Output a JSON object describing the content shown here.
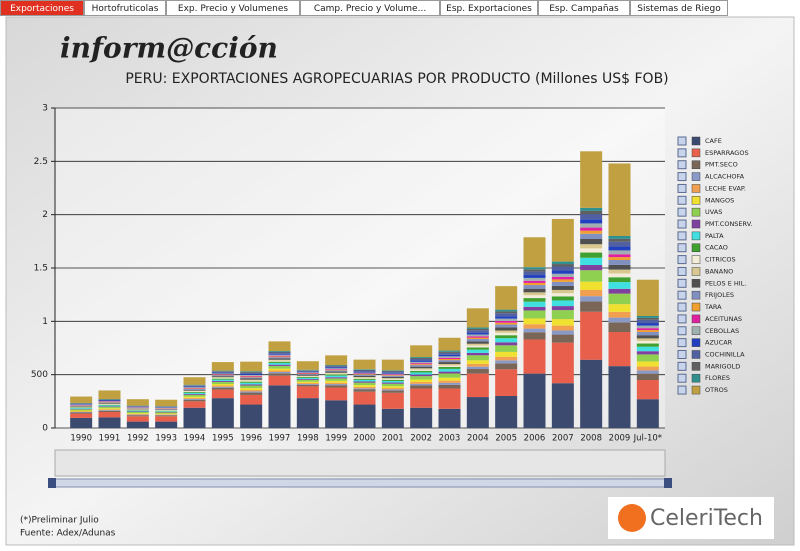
{
  "tabs": [
    "Exportaciones",
    "Hortofruticolas",
    "Exp. Precio y Volumenes",
    "Camp. Precio y Volume...",
    "Esp. Exportaciones",
    "Esp. Campañas",
    "Sistemas de Riego"
  ],
  "brand": "inform@cción",
  "chart_data": {
    "type": "bar",
    "stacked": true,
    "title": "PERU: EXPORTACIONES AGROPECUARIAS POR PRODUCTO (Millones US$ FOB)",
    "categories": [
      "1990",
      "1991",
      "1992",
      "1993",
      "1994",
      "1995",
      "1996",
      "1997",
      "1998",
      "1999",
      "2000",
      "2001",
      "2002",
      "2003",
      "2004",
      "2005",
      "2006",
      "2007",
      "2008",
      "2009",
      "Jul-10*"
    ],
    "ylim": [
      0,
      3000
    ],
    "yticks": [
      0,
      500,
      {
        "value": 1000,
        "label": "1"
      },
      {
        "value": 1500,
        "label": "1.5"
      },
      {
        "value": 2000,
        "label": "2"
      },
      {
        "value": 2500,
        "label": "2.5"
      },
      {
        "value": 3000,
        "label": "3"
      }
    ],
    "grid": true,
    "legend": "right",
    "series": [
      {
        "name": "CAFE",
        "color": "#3b4a6e",
        "values": [
          95,
          100,
          60,
          60,
          190,
          280,
          220,
          400,
          280,
          260,
          220,
          180,
          190,
          180,
          290,
          300,
          510,
          420,
          640,
          580,
          270
        ]
      },
      {
        "name": "ESPARRAGOS",
        "color": "#e8604c",
        "values": [
          40,
          50,
          50,
          50,
          60,
          80,
          90,
          90,
          110,
          120,
          120,
          150,
          180,
          190,
          220,
          250,
          320,
          380,
          450,
          320,
          180
        ]
      },
      {
        "name": "PMT.SECO",
        "color": "#7a6656",
        "values": [
          10,
          12,
          10,
          9,
          15,
          18,
          22,
          23,
          15,
          21,
          21,
          21,
          29,
          35,
          43,
          56,
          68,
          76,
          97,
          90,
          60
        ]
      },
      {
        "name": "ALCACHOFA",
        "color": "#8a9ac8",
        "values": [
          5,
          6,
          5,
          5,
          8,
          9,
          11,
          12,
          8,
          11,
          11,
          11,
          15,
          18,
          22,
          28,
          34,
          38,
          49,
          45,
          30
        ]
      },
      {
        "name": "LECHE EVAP.",
        "color": "#f0a050",
        "values": [
          6,
          7,
          6,
          5,
          9,
          11,
          13,
          14,
          9,
          13,
          13,
          13,
          17,
          21,
          26,
          34,
          41,
          46,
          58,
          54,
          36
        ]
      },
      {
        "name": "MANGOS",
        "color": "#f0e030",
        "values": [
          8,
          10,
          8,
          7,
          12,
          14,
          18,
          18,
          12,
          17,
          17,
          17,
          23,
          28,
          34,
          45,
          54,
          61,
          78,
          72,
          48
        ]
      },
      {
        "name": "UVAS",
        "color": "#90d050",
        "values": [
          11,
          13,
          11,
          10,
          17,
          20,
          24,
          25,
          17,
          23,
          23,
          23,
          32,
          39,
          47,
          62,
          75,
          84,
          107,
          99,
          66
        ]
      },
      {
        "name": "PMT.CONSERV.",
        "color": "#8040a0",
        "values": [
          5,
          6,
          5,
          5,
          8,
          9,
          11,
          12,
          8,
          11,
          11,
          11,
          15,
          18,
          22,
          28,
          34,
          38,
          49,
          45,
          30
        ]
      },
      {
        "name": "PALTA",
        "color": "#40e0e0",
        "values": [
          7,
          8,
          7,
          6,
          11,
          13,
          15,
          16,
          11,
          15,
          15,
          15,
          20,
          25,
          30,
          39,
          48,
          53,
          68,
          63,
          42
        ]
      },
      {
        "name": "CACAO",
        "color": "#40a030",
        "values": [
          5,
          6,
          5,
          5,
          8,
          9,
          11,
          12,
          8,
          11,
          11,
          11,
          15,
          18,
          22,
          28,
          34,
          38,
          49,
          45,
          30
        ]
      },
      {
        "name": "CITRICOS",
        "color": "#f4ecd8",
        "values": [
          4,
          5,
          4,
          4,
          6,
          7,
          9,
          9,
          6,
          8,
          8,
          8,
          12,
          14,
          17,
          22,
          27,
          30,
          39,
          36,
          24
        ]
      },
      {
        "name": "BANANO",
        "color": "#d8c890",
        "values": [
          4,
          5,
          4,
          4,
          6,
          7,
          9,
          9,
          6,
          8,
          8,
          8,
          12,
          14,
          17,
          22,
          27,
          30,
          39,
          36,
          24
        ]
      },
      {
        "name": "PELOS E HIL.",
        "color": "#505050",
        "values": [
          5,
          6,
          5,
          5,
          8,
          9,
          11,
          12,
          8,
          11,
          11,
          11,
          15,
          18,
          22,
          28,
          34,
          38,
          49,
          45,
          30
        ]
      },
      {
        "name": "FRIJOLES",
        "color": "#8090c0",
        "values": [
          5,
          6,
          5,
          5,
          8,
          9,
          11,
          12,
          8,
          11,
          11,
          11,
          15,
          18,
          22,
          28,
          34,
          38,
          49,
          45,
          30
        ]
      },
      {
        "name": "TARA",
        "color": "#f0a030",
        "values": [
          3,
          4,
          3,
          3,
          5,
          5,
          7,
          7,
          5,
          6,
          6,
          6,
          9,
          11,
          13,
          17,
          20,
          23,
          29,
          27,
          18
        ]
      },
      {
        "name": "ACEITUNAS",
        "color": "#e020a0",
        "values": [
          3,
          4,
          3,
          3,
          5,
          5,
          7,
          7,
          5,
          6,
          6,
          6,
          9,
          11,
          13,
          17,
          20,
          23,
          29,
          27,
          18
        ]
      },
      {
        "name": "CEBOLLAS",
        "color": "#a0b0b0",
        "values": [
          4,
          5,
          4,
          4,
          6,
          7,
          9,
          9,
          6,
          8,
          8,
          8,
          12,
          14,
          17,
          22,
          27,
          30,
          39,
          36,
          24
        ]
      },
      {
        "name": "AZUCAR",
        "color": "#2040c0",
        "values": [
          4,
          5,
          4,
          4,
          6,
          7,
          9,
          9,
          6,
          8,
          8,
          8,
          12,
          14,
          17,
          22,
          27,
          30,
          39,
          36,
          24
        ]
      },
      {
        "name": "COCHINILLA",
        "color": "#5060a0",
        "values": [
          5,
          6,
          5,
          5,
          8,
          9,
          11,
          12,
          8,
          11,
          11,
          11,
          15,
          18,
          22,
          28,
          34,
          38,
          49,
          45,
          30
        ]
      },
      {
        "name": "MARIGOLD",
        "color": "#606060",
        "values": [
          3,
          4,
          3,
          3,
          5,
          5,
          7,
          7,
          5,
          6,
          6,
          6,
          9,
          11,
          13,
          17,
          20,
          23,
          29,
          27,
          18
        ]
      },
      {
        "name": "FLORES",
        "color": "#309090",
        "values": [
          3,
          4,
          3,
          3,
          5,
          5,
          7,
          7,
          5,
          6,
          6,
          6,
          9,
          11,
          13,
          17,
          20,
          23,
          29,
          27,
          18
        ]
      },
      {
        "name": "OTROS",
        "color": "#c0a040",
        "values": [
          60,
          80,
          60,
          60,
          70,
          80,
          90,
          90,
          80,
          90,
          90,
          100,
          110,
          120,
          180,
          220,
          280,
          400,
          530,
          680,
          340
        ]
      }
    ]
  },
  "footer": {
    "note": "(*)Preliminar Julio",
    "source": "Fuente: Adex/Adunas"
  },
  "logo": "CeleriTech"
}
